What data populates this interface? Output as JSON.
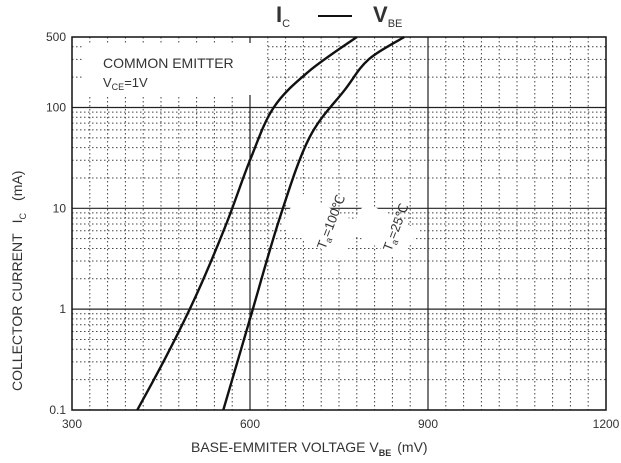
{
  "chart_data": {
    "type": "line",
    "title": {
      "main_a": "I",
      "sub_a": "C",
      "main_b": "V",
      "sub_b": "BE"
    },
    "xlabel": {
      "text": "BASE-EMMITER VOLTAGE  V",
      "sub": "BE",
      "unit": "(mV)"
    },
    "ylabel": {
      "text": "COLLECTOR CURRENT",
      "symbol": "I",
      "sub": "C",
      "unit": "(mA)"
    },
    "xlim": [
      300,
      1200
    ],
    "ylim": [
      0.1,
      500
    ],
    "yscale": "log",
    "grid": true,
    "x_ticks": [
      "300",
      "600",
      "900",
      "1200"
    ],
    "y_ticks": [
      "0.1",
      "1",
      "10",
      "100",
      "500"
    ],
    "annotation": {
      "line1": "COMMON EMITTER",
      "line2_main": "V",
      "line2_sub": "CE",
      "line2_rest": "=1V"
    },
    "series": [
      {
        "name": "Ta=100℃",
        "label_main": "T",
        "label_sub": "a",
        "label_rest": "=100℃",
        "x": [
          410,
          460,
          510,
          560,
          600,
          640,
          700,
          780
        ],
        "y": [
          0.1,
          0.35,
          1.4,
          7,
          30,
          100,
          230,
          500
        ]
      },
      {
        "name": "Ta=25℃",
        "label_main": "T",
        "label_sub": "a",
        "label_rest": "=25℃",
        "x": [
          555,
          600,
          650,
          700,
          760,
          800,
          860
        ],
        "y": [
          0.1,
          0.8,
          8,
          50,
          150,
          300,
          500
        ]
      }
    ]
  },
  "colors": {
    "curve": "#111111",
    "major_grid": "#222222",
    "minor_grid": "#444444",
    "frame": "#111111"
  }
}
